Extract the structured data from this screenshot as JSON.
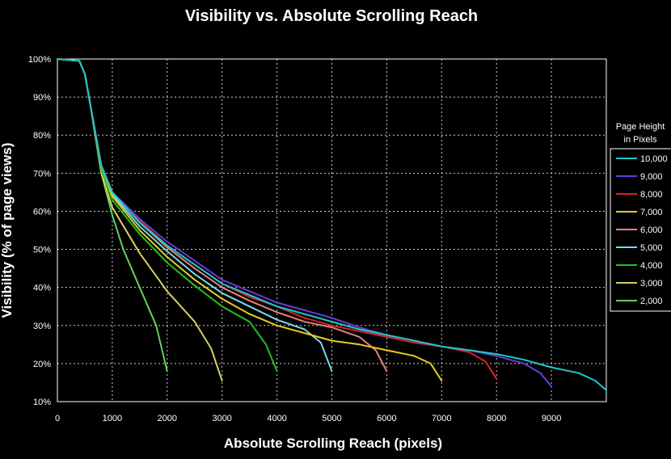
{
  "chart_data": {
    "type": "line",
    "title": "Visibility vs. Absolute Scrolling Reach",
    "xlabel": "Absolute Scrolling Reach (pixels)",
    "ylabel": "Visibility (% of page views)",
    "xlim": [
      0,
      10000
    ],
    "ylim": [
      10,
      100
    ],
    "x_ticks": [
      0,
      1000,
      2000,
      3000,
      4000,
      5000,
      6000,
      7000,
      8000,
      9000
    ],
    "y_ticks": [
      10,
      20,
      30,
      40,
      50,
      60,
      70,
      80,
      90,
      100
    ],
    "y_tick_labels": [
      "10%",
      "20%",
      "30%",
      "40%",
      "50%",
      "60%",
      "70%",
      "80%",
      "90%",
      "100%"
    ],
    "grid": "dotted",
    "legend": {
      "title": [
        "Page Height",
        "in Pixels"
      ],
      "position": "right"
    },
    "series": [
      {
        "name": "10,000",
        "color": "#1fc8c8",
        "points": [
          [
            0,
            100
          ],
          [
            400,
            99.5
          ],
          [
            500,
            96
          ],
          [
            600,
            88
          ],
          [
            800,
            72
          ],
          [
            1000,
            65
          ],
          [
            1500,
            57
          ],
          [
            2000,
            51
          ],
          [
            2500,
            46
          ],
          [
            3000,
            41
          ],
          [
            3500,
            38
          ],
          [
            4000,
            35
          ],
          [
            4500,
            33
          ],
          [
            5000,
            31
          ],
          [
            5500,
            29
          ],
          [
            6000,
            27.5
          ],
          [
            6500,
            26
          ],
          [
            7000,
            24.5
          ],
          [
            7500,
            23.5
          ],
          [
            8000,
            22.5
          ],
          [
            8500,
            21
          ],
          [
            9000,
            19
          ],
          [
            9500,
            17.5
          ],
          [
            9800,
            15.5
          ],
          [
            10000,
            13
          ]
        ]
      },
      {
        "name": "9,000",
        "color": "#6a3ad8",
        "points": [
          [
            0,
            100
          ],
          [
            400,
            99.5
          ],
          [
            500,
            96
          ],
          [
            600,
            88
          ],
          [
            800,
            72
          ],
          [
            1000,
            65
          ],
          [
            1500,
            58
          ],
          [
            2000,
            52
          ],
          [
            2500,
            47
          ],
          [
            3000,
            42
          ],
          [
            3500,
            39
          ],
          [
            4000,
            36
          ],
          [
            4500,
            34
          ],
          [
            5000,
            32
          ],
          [
            5500,
            29.5
          ],
          [
            6000,
            27.5
          ],
          [
            6500,
            26
          ],
          [
            7000,
            24.5
          ],
          [
            7500,
            23.5
          ],
          [
            8000,
            22
          ],
          [
            8500,
            20
          ],
          [
            8800,
            17.5
          ],
          [
            9000,
            14
          ]
        ]
      },
      {
        "name": "8,000",
        "color": "#d8242a",
        "points": [
          [
            0,
            100
          ],
          [
            400,
            99.5
          ],
          [
            500,
            96
          ],
          [
            600,
            88
          ],
          [
            800,
            72
          ],
          [
            1000,
            65
          ],
          [
            1500,
            57.5
          ],
          [
            2000,
            51
          ],
          [
            2500,
            46
          ],
          [
            3000,
            41
          ],
          [
            3500,
            37.5
          ],
          [
            4000,
            35
          ],
          [
            4500,
            32
          ],
          [
            5000,
            30
          ],
          [
            5500,
            28.5
          ],
          [
            6000,
            27
          ],
          [
            6500,
            25.5
          ],
          [
            7000,
            24.5
          ],
          [
            7500,
            23
          ],
          [
            7800,
            20.5
          ],
          [
            8000,
            16
          ]
        ]
      },
      {
        "name": "7,000",
        "color": "#e6cc22",
        "points": [
          [
            0,
            100
          ],
          [
            400,
            99.5
          ],
          [
            500,
            96
          ],
          [
            600,
            88
          ],
          [
            800,
            72
          ],
          [
            1000,
            64
          ],
          [
            1500,
            55
          ],
          [
            2000,
            48
          ],
          [
            2500,
            42
          ],
          [
            3000,
            37
          ],
          [
            3500,
            33
          ],
          [
            4000,
            30
          ],
          [
            4500,
            28
          ],
          [
            5000,
            26
          ],
          [
            5500,
            25
          ],
          [
            6000,
            23.5
          ],
          [
            6500,
            22
          ],
          [
            6800,
            20
          ],
          [
            7000,
            15.5
          ]
        ]
      },
      {
        "name": "6,000",
        "color": "#e88080",
        "points": [
          [
            0,
            100
          ],
          [
            400,
            99.5
          ],
          [
            500,
            96
          ],
          [
            600,
            88
          ],
          [
            800,
            72
          ],
          [
            1000,
            65
          ],
          [
            1500,
            57
          ],
          [
            2000,
            50.5
          ],
          [
            2500,
            45
          ],
          [
            3000,
            40
          ],
          [
            3500,
            36.5
          ],
          [
            4000,
            33.5
          ],
          [
            4500,
            31
          ],
          [
            5000,
            29.5
          ],
          [
            5500,
            27
          ],
          [
            5800,
            23.5
          ],
          [
            6000,
            18
          ]
        ]
      },
      {
        "name": "5,000",
        "color": "#7ad8e8",
        "points": [
          [
            0,
            100
          ],
          [
            400,
            99.5
          ],
          [
            500,
            96
          ],
          [
            600,
            88
          ],
          [
            800,
            72
          ],
          [
            1000,
            64.5
          ],
          [
            1500,
            56
          ],
          [
            2000,
            49.5
          ],
          [
            2500,
            43.5
          ],
          [
            3000,
            38.5
          ],
          [
            3500,
            35
          ],
          [
            4000,
            31.5
          ],
          [
            4500,
            29
          ],
          [
            4800,
            25.5
          ],
          [
            5000,
            18
          ]
        ]
      },
      {
        "name": "4,000",
        "color": "#22c022",
        "points": [
          [
            0,
            100
          ],
          [
            400,
            99.5
          ],
          [
            500,
            96
          ],
          [
            600,
            88
          ],
          [
            800,
            71
          ],
          [
            1000,
            63
          ],
          [
            1500,
            54
          ],
          [
            2000,
            46.5
          ],
          [
            2500,
            40.5
          ],
          [
            3000,
            35
          ],
          [
            3500,
            31
          ],
          [
            3800,
            25
          ],
          [
            4000,
            18
          ]
        ]
      },
      {
        "name": "3,000",
        "color": "#d8d060",
        "points": [
          [
            0,
            100
          ],
          [
            400,
            99.5
          ],
          [
            500,
            96
          ],
          [
            600,
            88
          ],
          [
            800,
            70
          ],
          [
            1000,
            61
          ],
          [
            1500,
            49
          ],
          [
            2000,
            39
          ],
          [
            2500,
            31
          ],
          [
            2800,
            24
          ],
          [
            3000,
            15.5
          ]
        ]
      },
      {
        "name": "2,000",
        "color": "#66d060",
        "points": [
          [
            0,
            100
          ],
          [
            400,
            99.5
          ],
          [
            500,
            96
          ],
          [
            600,
            88
          ],
          [
            800,
            70
          ],
          [
            1000,
            59
          ],
          [
            1200,
            50
          ],
          [
            1500,
            40
          ],
          [
            1800,
            30
          ],
          [
            2000,
            18
          ]
        ]
      }
    ]
  }
}
